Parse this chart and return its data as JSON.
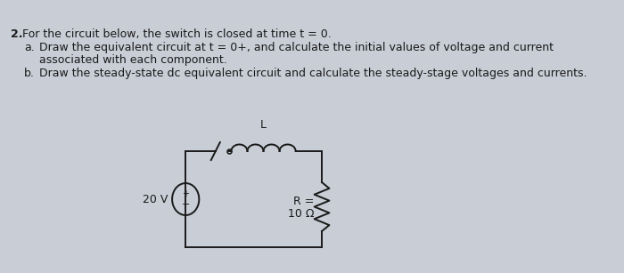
{
  "bg_color": "#c8cdd6",
  "text_color": "#1a1a1a",
  "line_color": "#1a1a1a",
  "title_num": "2.",
  "title_text": "For the circuit below, the switch is closed at time t = 0.",
  "item_a_label": "a.",
  "item_a_text1": "Draw the equivalent circuit at t = 0+, and calculate the initial values of voltage and current",
  "item_a_text2": "associated with each component.",
  "item_b_label": "b.",
  "item_b_text": "Draw the steady-state dc equivalent circuit and calculate the steady-stage voltages and currents.",
  "voltage_label": "20 V",
  "R_label1": "R =",
  "R_label2": "10 Ω",
  "L_label": "L",
  "font_size": 9.0
}
